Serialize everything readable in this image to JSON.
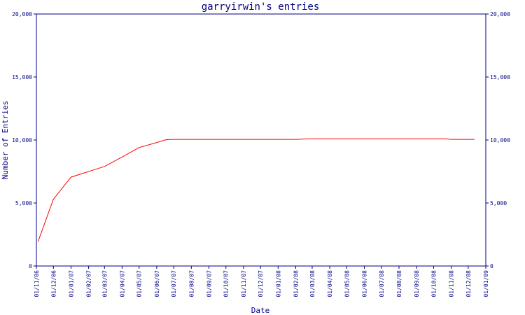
{
  "chart_data": {
    "type": "line",
    "title": "garryirwin's entries",
    "xlabel": "Date",
    "ylabel": "Number of Entries",
    "ylim": [
      0,
      20000
    ],
    "yticks": [
      0,
      5000,
      10000,
      15000,
      20000
    ],
    "ytick_labels": [
      "0",
      "5,000",
      "10,000",
      "15,000",
      "20,000"
    ],
    "xlim": [
      "2006-11-01",
      "2009-01-01"
    ],
    "xtick_labels": [
      "01/11/06",
      "01/12/06",
      "01/01/07",
      "01/02/07",
      "01/03/07",
      "01/04/07",
      "01/05/07",
      "01/06/07",
      "01/07/07",
      "01/08/07",
      "01/09/07",
      "01/10/07",
      "01/11/07",
      "01/12/07",
      "01/01/08",
      "01/02/08",
      "01/03/08",
      "01/04/08",
      "01/05/08",
      "01/06/08",
      "01/07/08",
      "01/08/08",
      "01/09/08",
      "01/10/08",
      "01/11/08",
      "01/12/08",
      "01/01/09"
    ],
    "grid": false,
    "right_axis": true,
    "line_color": "#ff0000",
    "axis_color": "#000080",
    "series": [
      {
        "x": [
          "2006-11-04",
          "2006-12-01",
          "2007-01-01",
          "2007-02-01",
          "2007-03-01",
          "2007-04-01",
          "2007-05-01",
          "2007-06-01",
          "2007-06-18",
          "2007-07-01",
          "2007-09-01",
          "2007-11-01",
          "2008-01-01",
          "2008-02-01",
          "2008-03-01",
          "2008-05-01",
          "2008-07-01",
          "2008-09-01",
          "2008-10-20",
          "2008-11-01",
          "2008-12-01",
          "2008-12-12"
        ],
        "values": [
          1950,
          5300,
          7050,
          7500,
          7900,
          8650,
          9400,
          9800,
          10030,
          10050,
          10050,
          10050,
          10050,
          10050,
          10100,
          10100,
          10100,
          10100,
          10100,
          10050,
          10050,
          10050
        ]
      }
    ]
  }
}
